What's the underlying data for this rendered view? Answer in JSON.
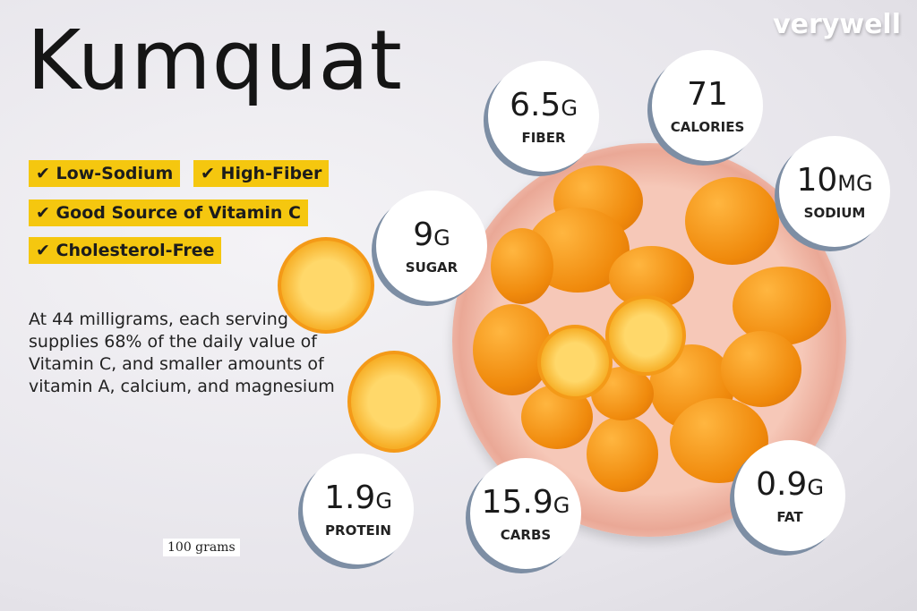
{
  "title": "Kumquat",
  "brand": "verywell",
  "tags": [
    "Low-Sodium",
    "High-Fiber",
    "Good Source of Vitamin C",
    "Cholesterol-Free"
  ],
  "check_icon": "✔",
  "description": "At 44 milligrams, each serving supplies 68% of the daily value of Vitamin C, and smaller amounts of vitamin A, calcium, and magnesium",
  "serving": "100 grams",
  "nutrients": [
    {
      "value": "6.5",
      "unit": "G",
      "label": "FIBER"
    },
    {
      "value": "71",
      "unit": "",
      "label": "CALORIES"
    },
    {
      "value": "10",
      "unit": "MG",
      "label": "SODIUM"
    },
    {
      "value": "9",
      "unit": "G",
      "label": "SUGAR"
    },
    {
      "value": "1.9",
      "unit": "G",
      "label": "PROTEIN"
    },
    {
      "value": "15.9",
      "unit": "G",
      "label": "CARBS"
    },
    {
      "value": "0.9",
      "unit": "G",
      "label": "FAT"
    }
  ],
  "colors": {
    "tag": "#f5c70f",
    "circle_shadow": "#7d8ea4"
  }
}
